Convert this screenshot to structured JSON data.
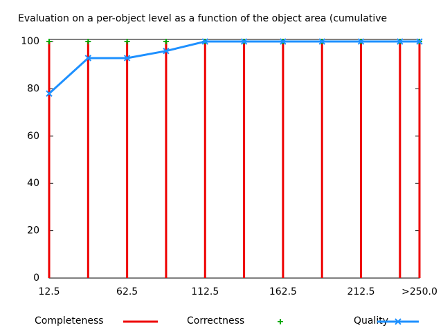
{
  "chart_data": {
    "type": "impulse-line",
    "title": "Evaluation on a per-object level as a function of the object area (cumulative",
    "x": [
      12.5,
      37.5,
      62.5,
      87.5,
      112.5,
      137.5,
      162.5,
      187.5,
      212.5,
      237.5,
      250
    ],
    "xlim": [
      12.5,
      250
    ],
    "xticks": [
      12.5,
      62.5,
      112.5,
      162.5,
      212.5,
      {
        "value": 250,
        "label": ">250.0"
      }
    ],
    "ylim": [
      0,
      100
    ],
    "yticks": [
      0,
      20,
      40,
      60,
      80,
      100
    ],
    "series": [
      {
        "name": "Completeness",
        "color": "#ee0000",
        "style": "impulses",
        "values": [
          100,
          100,
          100,
          100,
          100,
          100,
          100,
          100,
          100,
          100,
          100
        ]
      },
      {
        "name": "Correctness",
        "color": "#00aa00",
        "style": "points",
        "values": [
          100,
          100,
          100,
          100,
          100,
          100,
          100,
          100,
          100,
          100,
          100
        ]
      },
      {
        "name": "Quality",
        "color": "#1e90ff",
        "style": "linespoints",
        "values": [
          78,
          93,
          93,
          96,
          100,
          100,
          100,
          100,
          100,
          100,
          100
        ]
      }
    ]
  }
}
